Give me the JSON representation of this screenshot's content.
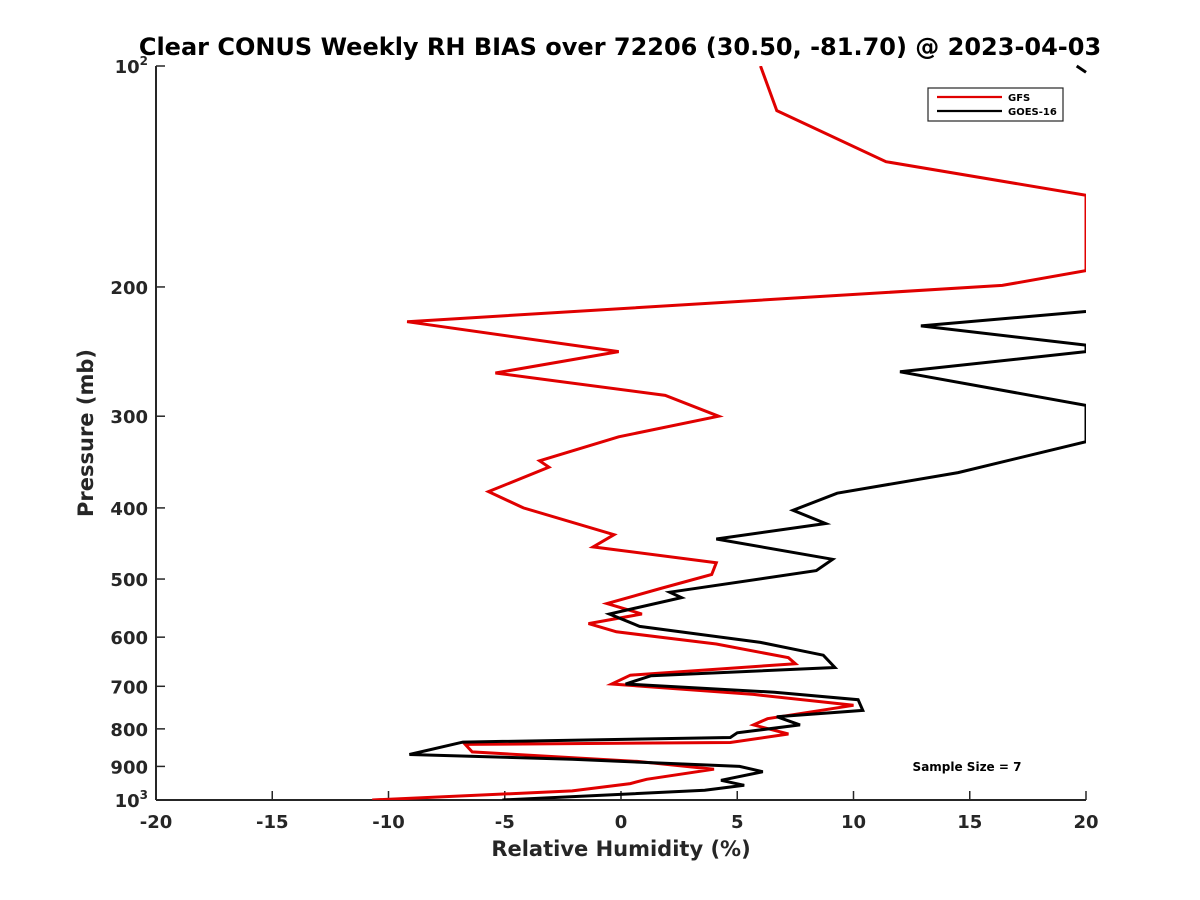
{
  "chart_data": {
    "type": "line",
    "title": "Clear CONUS Weekly RH BIAS over 72206 (30.50, -81.70) @ 2023-04-03",
    "xlabel": "Relative Humidity (%)",
    "ylabel": "Pressure (mb)",
    "xlim": [
      -20,
      20
    ],
    "ylim": [
      1000,
      100
    ],
    "y_scale": "log",
    "y_reversed": true,
    "x_ticks": [
      "-20",
      "-15",
      "-10",
      "-5",
      "0",
      "5",
      "10",
      "15",
      "20"
    ],
    "y_ticks": [
      {
        "value": 100,
        "base": "10",
        "exp": "2",
        "label": ""
      },
      {
        "value": 200,
        "label": "200"
      },
      {
        "value": 300,
        "label": "300"
      },
      {
        "value": 400,
        "label": "400"
      },
      {
        "value": 500,
        "label": "500"
      },
      {
        "value": 600,
        "label": "600"
      },
      {
        "value": 700,
        "label": "700"
      },
      {
        "value": 800,
        "label": "800"
      },
      {
        "value": 900,
        "label": "900"
      },
      {
        "value": 1000,
        "base": "10",
        "exp": "3",
        "label": ""
      }
    ],
    "legend_position": "top-right",
    "grid": false,
    "annotation": "Sample Size = 7",
    "series": [
      {
        "name": "GFS",
        "color": "#e00000",
        "points": [
          [
            6.0,
            100
          ],
          [
            6.7,
            115
          ],
          [
            11.4,
            135
          ],
          [
            20.0,
            150
          ],
          [
            20.0,
            190
          ],
          [
            16.4,
            199
          ],
          [
            -9.2,
            223
          ],
          [
            -0.1,
            245
          ],
          [
            -5.4,
            262
          ],
          [
            1.9,
            281
          ],
          [
            4.2,
            300
          ],
          [
            -0.1,
            320
          ],
          [
            -3.5,
            345
          ],
          [
            -3.1,
            352
          ],
          [
            -5.7,
            380
          ],
          [
            -4.2,
            400
          ],
          [
            -0.3,
            435
          ],
          [
            -1.2,
            452
          ],
          [
            4.1,
            475
          ],
          [
            3.9,
            493
          ],
          [
            1.7,
            515
          ],
          [
            -0.6,
            540
          ],
          [
            0.9,
            558
          ],
          [
            -1.4,
            575
          ],
          [
            -0.2,
            590
          ],
          [
            4.1,
            613
          ],
          [
            7.2,
            640
          ],
          [
            7.5,
            652
          ],
          [
            0.4,
            676
          ],
          [
            -0.4,
            695
          ],
          [
            5.7,
            718
          ],
          [
            10.0,
            743
          ],
          [
            6.3,
            775
          ],
          [
            5.7,
            790
          ],
          [
            7.2,
            813
          ],
          [
            4.7,
            835
          ],
          [
            -6.7,
            840
          ],
          [
            -6.4,
            860
          ],
          [
            0.7,
            886
          ],
          [
            4.0,
            908
          ],
          [
            1.1,
            937
          ],
          [
            0.4,
            950
          ],
          [
            -2.1,
            972
          ],
          [
            -10.7,
            1000
          ]
        ]
      },
      {
        "name": "GOES-16",
        "color": "#000000",
        "points": [
          [
            20.0,
            216
          ],
          [
            12.9,
            226
          ],
          [
            20.0,
            240
          ],
          [
            20.0,
            245
          ],
          [
            12.0,
            261
          ],
          [
            20.0,
            290
          ],
          [
            20.0,
            325
          ],
          [
            14.5,
            358
          ],
          [
            9.3,
            382
          ],
          [
            7.4,
            403
          ],
          [
            8.8,
            420
          ],
          [
            4.1,
            441
          ],
          [
            9.1,
            470
          ],
          [
            8.4,
            487
          ],
          [
            2.1,
            521
          ],
          [
            2.6,
            530
          ],
          [
            -0.5,
            558
          ],
          [
            0.8,
            580
          ],
          [
            6.0,
            610
          ],
          [
            8.7,
            635
          ],
          [
            9.2,
            660
          ],
          [
            1.3,
            677
          ],
          [
            0.2,
            695
          ],
          [
            6.6,
            713
          ],
          [
            10.2,
            730
          ],
          [
            10.4,
            755
          ],
          [
            6.7,
            770
          ],
          [
            7.7,
            790
          ],
          [
            5.0,
            810
          ],
          [
            4.7,
            822
          ],
          [
            -6.8,
            834
          ],
          [
            -9.1,
            867
          ],
          [
            -2.1,
            880
          ],
          [
            5.1,
            900
          ],
          [
            6.1,
            915
          ],
          [
            4.3,
            940
          ],
          [
            5.3,
            955
          ],
          [
            3.6,
            970
          ],
          [
            -5.1,
            1000
          ]
        ]
      }
    ]
  }
}
